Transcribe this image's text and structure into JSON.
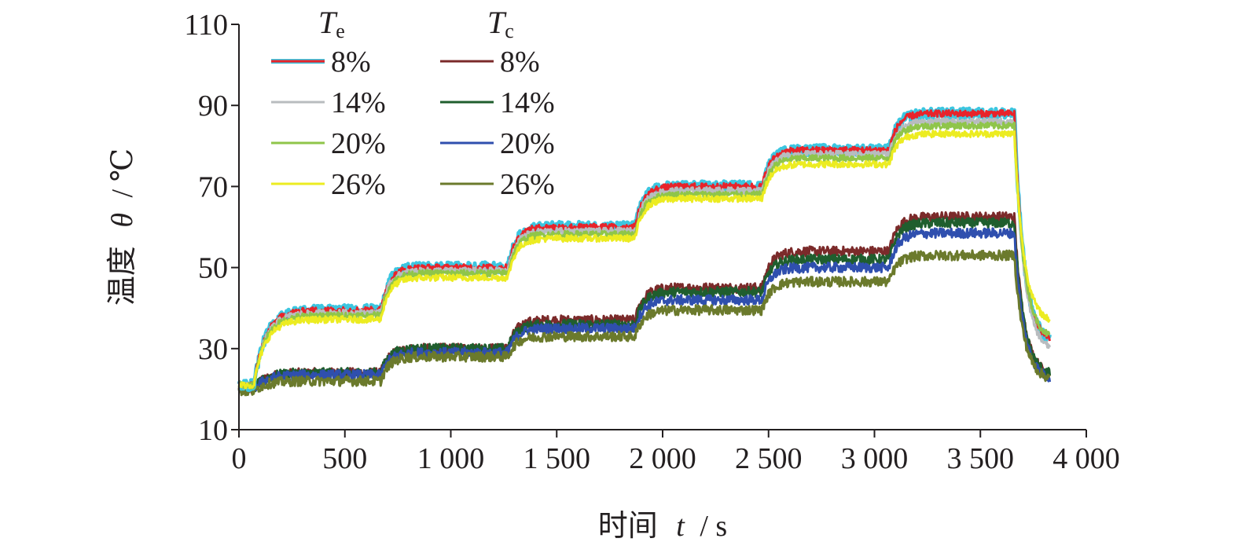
{
  "chart_data": {
    "type": "line",
    "title": "",
    "xlabel": {
      "prefix": "时间",
      "symbol": "t",
      "unit": "/ s"
    },
    "ylabel": {
      "prefix": "温度",
      "symbol": "θ",
      "unit": "/ ℃"
    },
    "xlim": [
      0,
      4000
    ],
    "ylim": [
      10,
      110
    ],
    "xticks": [
      0,
      500,
      1000,
      1500,
      2000,
      2500,
      3000,
      3500,
      4000
    ],
    "xtick_labels": [
      "0",
      "500",
      "1 000",
      "1 500",
      "2 000",
      "2 500",
      "3 000",
      "3 500",
      "4 000"
    ],
    "yticks": [
      10,
      30,
      50,
      70,
      90,
      110
    ],
    "ytick_labels": [
      "10",
      "30",
      "50",
      "70",
      "90",
      "110"
    ],
    "grid": false,
    "legend": {
      "placement": "top-left",
      "groups": [
        {
          "base": "T",
          "sub": "e",
          "entries": [
            "8%",
            "14%",
            "20%",
            "26%"
          ]
        },
        {
          "base": "T",
          "sub": "c",
          "entries": [
            "8%",
            "14%",
            "20%",
            "26%"
          ]
        }
      ]
    },
    "series_meta": {
      "step_times": [
        70,
        670,
        1270,
        1870,
        2470,
        3070,
        3660
      ],
      "cool_end_time": 3830
    },
    "series": [
      {
        "name": "Te 8%",
        "group": "Te",
        "color": "#e8232a",
        "halo": "#3cc6e0",
        "plateaus": [
          21,
          39.5,
          50,
          60,
          70,
          79,
          88
        ],
        "end_value": 31
      },
      {
        "name": "Te 14%",
        "group": "Te",
        "color": "#b8bcbf",
        "plateaus": [
          21,
          38.8,
          49.2,
          59,
          69,
          78,
          86
        ],
        "end_value": 29
      },
      {
        "name": "Te 20%",
        "group": "Te",
        "color": "#8fc54a",
        "plateaus": [
          21,
          38.2,
          48.6,
          58.2,
          68,
          77,
          85
        ],
        "end_value": 32
      },
      {
        "name": "Te 26%",
        "group": "Te",
        "color": "#ecec21",
        "plateaus": [
          21,
          37.2,
          47.5,
          57.2,
          67,
          75.5,
          83
        ],
        "end_value": 36
      },
      {
        "name": "Tc 8%",
        "group": "Tc",
        "color": "#7b2a2a",
        "plateaus": [
          20,
          24,
          30,
          37,
          45,
          54,
          62.5
        ],
        "end_value": 23
      },
      {
        "name": "Tc 14%",
        "group": "Tc",
        "color": "#1f5e2e",
        "plateaus": [
          20,
          24,
          30,
          36,
          44,
          52,
          61
        ],
        "end_value": 23
      },
      {
        "name": "Tc 20%",
        "group": "Tc",
        "color": "#2f4fae",
        "plateaus": [
          20,
          23.5,
          29,
          35,
          42,
          50,
          58.5
        ],
        "end_value": 22
      },
      {
        "name": "Tc 26%",
        "group": "Tc",
        "color": "#6b7a2c",
        "plateaus": [
          19.5,
          22,
          28,
          33,
          39.5,
          46.5,
          53
        ],
        "end_value": 22
      }
    ]
  }
}
